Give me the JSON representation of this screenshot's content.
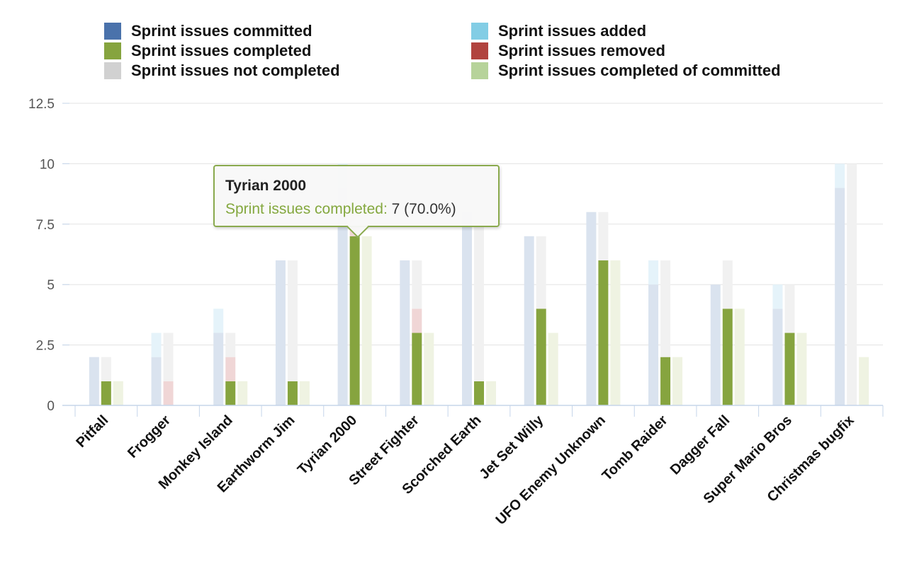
{
  "colors": {
    "committed": "#4a72ab",
    "completed": "#86a43f",
    "not_completed": "#d1d1d1",
    "added": "#82cde5",
    "removed": "#b1443f",
    "completed_of_committed": "#b7d39a"
  },
  "chart_data": {
    "type": "bar",
    "ylim": [
      0,
      12.5
    ],
    "yticks": [
      "0",
      "2.5",
      "5",
      "7.5",
      "10",
      "12.5"
    ],
    "legend_position": "top",
    "grid": true,
    "categories": [
      "Pitfall",
      "Frogger",
      "Monkey Island",
      "Earthworm Jim",
      "Tyrian 2000",
      "Street Fighter",
      "Scorched Earth",
      "Jet Set Willy",
      "UFO Enemy Unknown",
      "Tomb Raider",
      "Dagger Fall",
      "Super Mario Bros",
      "Christmas bugfix"
    ],
    "legend": [
      {
        "name": "Sprint issues committed",
        "color": "#4a72ab"
      },
      {
        "name": "Sprint issues added",
        "color": "#82cde5"
      },
      {
        "name": "Sprint issues completed",
        "color": "#86a43f"
      },
      {
        "name": "Sprint issues removed",
        "color": "#b1443f"
      },
      {
        "name": "Sprint issues not completed",
        "color": "#d1d1d1"
      },
      {
        "name": "Sprint issues completed of committed",
        "color": "#b7d39a"
      }
    ],
    "series": [
      {
        "name": "Sprint issues committed",
        "values": [
          2,
          2,
          3,
          6,
          9,
          6,
          8,
          7,
          8,
          5,
          5,
          4,
          9
        ]
      },
      {
        "name": "Sprint issues added",
        "values": [
          0,
          1,
          1,
          0,
          1,
          0,
          0,
          0,
          0,
          1,
          0,
          1,
          1
        ]
      },
      {
        "name": "Sprint issues completed",
        "values": [
          1,
          0,
          1,
          1,
          7,
          3,
          1,
          4,
          6,
          2,
          4,
          3,
          0
        ]
      },
      {
        "name": "Sprint issues removed",
        "values": [
          0,
          1,
          1,
          0,
          1,
          1,
          0,
          0,
          0,
          0,
          0,
          0,
          0
        ]
      },
      {
        "name": "Sprint issues not completed",
        "values": [
          1,
          2,
          1,
          5,
          1,
          2,
          7,
          3,
          2,
          4,
          2,
          2,
          10
        ]
      },
      {
        "name": "Sprint issues completed of committed",
        "values": [
          1,
          0,
          1,
          1,
          7,
          3,
          1,
          3,
          6,
          2,
          4,
          3,
          2
        ]
      }
    ],
    "highlight_index": 4,
    "tooltip": {
      "title": "Tyrian 2000",
      "series_label": "Sprint issues completed:",
      "value_text": "7 (70.0%)"
    }
  }
}
